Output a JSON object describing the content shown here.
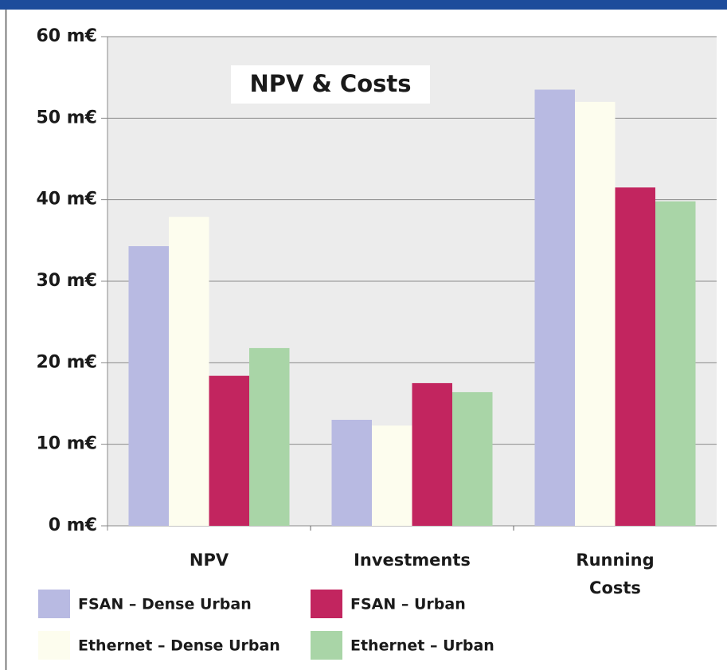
{
  "chart_data": {
    "type": "bar",
    "title": "NPV & Costs",
    "categories": [
      "NPV",
      "Investments",
      "Running Costs"
    ],
    "series": [
      {
        "name": "FSAN – Dense Urban",
        "color": "#b8bae2",
        "values": [
          34.3,
          13.0,
          53.5
        ]
      },
      {
        "name": "Ethernet – Dense Urban",
        "color": "#fdfdee",
        "values": [
          37.9,
          12.3,
          52.0
        ]
      },
      {
        "name": "FSAN – Urban",
        "color": "#c2255f",
        "values": [
          18.4,
          17.5,
          41.5
        ]
      },
      {
        "name": "Ethernet – Urban",
        "color": "#a9d5a7",
        "values": [
          21.8,
          16.4,
          39.8
        ]
      }
    ],
    "ylim": [
      0,
      60
    ],
    "yticks": [
      {
        "value": 0,
        "label": "0 m€"
      },
      {
        "value": 10,
        "label": "10 m€"
      },
      {
        "value": 20,
        "label": "20 m€"
      },
      {
        "value": 30,
        "label": "30 m€"
      },
      {
        "value": 40,
        "label": "40 m€"
      },
      {
        "value": 50,
        "label": "50 m€"
      },
      {
        "value": 60,
        "label": "60 m€"
      }
    ],
    "grid": true
  }
}
